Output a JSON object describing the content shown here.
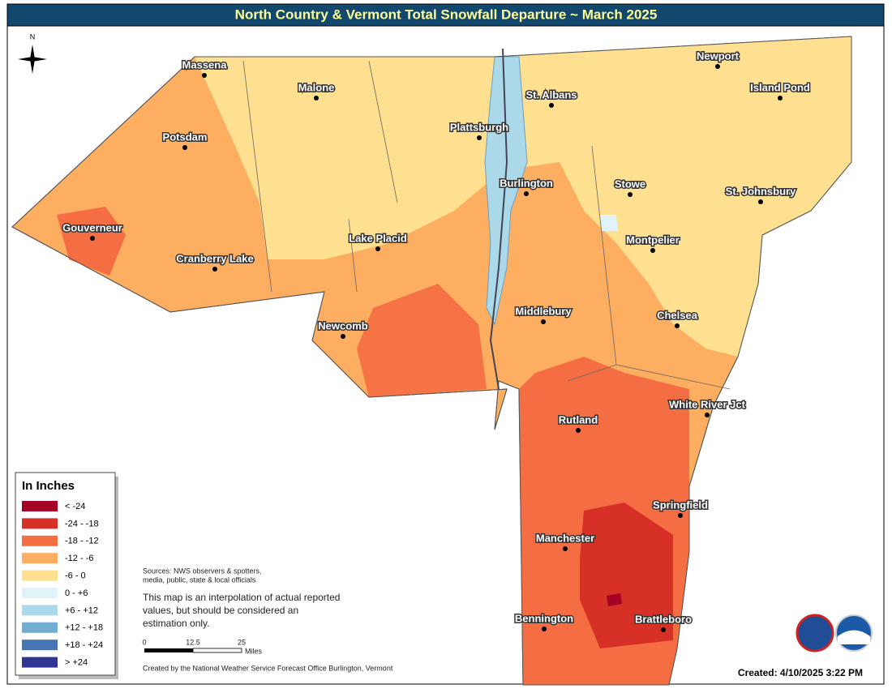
{
  "header": {
    "title": "North Country & Vermont Total Snowfall Departure ~ March 2025"
  },
  "compass": {
    "label": "N"
  },
  "map": {
    "cities": [
      "Massena",
      "Malone",
      "St. Albans",
      "Newport",
      "Island Pond",
      "Potsdam",
      "Plattsburgh",
      "Burlington",
      "Stowe",
      "St. Johnsbury",
      "Gouverneur",
      "Lake Placid",
      "Cranberry Lake",
      "Montpelier",
      "Middlebury",
      "Chelsea",
      "Newcomb",
      "White River Jct",
      "Rutland",
      "Springfield",
      "Manchester",
      "Bennington",
      "Brattleboro"
    ]
  },
  "legend": {
    "title": "In Inches",
    "items": [
      {
        "label": "< -24",
        "color": "#a50026"
      },
      {
        "label": "-24 - -18",
        "color": "#d73027"
      },
      {
        "label": "-18 - -12",
        "color": "#f46d43"
      },
      {
        "label": "-12 - -6",
        "color": "#fdae61"
      },
      {
        "label": "-6 - 0",
        "color": "#fee090"
      },
      {
        "label": "0 - +6",
        "color": "#e0f3f8"
      },
      {
        "label": "+6 - +12",
        "color": "#abd9e9"
      },
      {
        "label": "+12 - +18",
        "color": "#74add1"
      },
      {
        "label": "+18 - +24",
        "color": "#4575b4"
      },
      {
        "label": "> +24",
        "color": "#313695"
      }
    ]
  },
  "notes": {
    "sources": [
      "Sources: NWS observers & spotters,",
      "media, public, state & local officials"
    ],
    "disclaimer": [
      "This map is an interpolation of actual reported",
      "values, but should be considered an",
      "estimation only."
    ]
  },
  "scale_bar": {
    "ticks": [
      0,
      12.5,
      25
    ],
    "unit": "Miles"
  },
  "footer": {
    "credit": "Created by the National Weather Service Forecast Office Burlington, Vermont",
    "created": "Created: 4/10/2025 3:22 PM"
  }
}
